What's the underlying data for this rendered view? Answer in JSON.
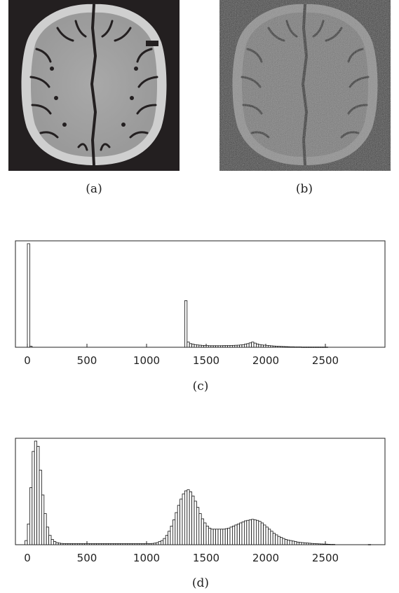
{
  "figure": {
    "panels": {
      "a": {
        "label": "(a)"
      },
      "b": {
        "label": "(b)"
      },
      "c": {
        "label": "(c)"
      },
      "d": {
        "label": "(d)"
      }
    }
  },
  "chart_data": [
    {
      "id": "c",
      "type": "bar",
      "xlim": [
        -100,
        3000
      ],
      "ylim": [
        0,
        1
      ],
      "xticks": [
        0,
        500,
        1000,
        1500,
        2000,
        2500
      ],
      "tick_labels": [
        "0",
        "500",
        "1000",
        "1500",
        "2000",
        "2500"
      ],
      "bin_width": 20,
      "bars": [
        [
          0,
          1.0
        ],
        [
          20,
          0.01
        ],
        [
          1320,
          0.45
        ],
        [
          1340,
          0.05
        ],
        [
          1360,
          0.035
        ],
        [
          1380,
          0.03
        ],
        [
          1400,
          0.025
        ],
        [
          1420,
          0.022
        ],
        [
          1440,
          0.02
        ],
        [
          1460,
          0.018
        ],
        [
          1480,
          0.017
        ],
        [
          1500,
          0.016
        ],
        [
          1520,
          0.015
        ],
        [
          1540,
          0.015
        ],
        [
          1560,
          0.015
        ],
        [
          1580,
          0.015
        ],
        [
          1600,
          0.015
        ],
        [
          1620,
          0.015
        ],
        [
          1640,
          0.016
        ],
        [
          1660,
          0.016
        ],
        [
          1680,
          0.016
        ],
        [
          1700,
          0.017
        ],
        [
          1720,
          0.018
        ],
        [
          1740,
          0.019
        ],
        [
          1760,
          0.02
        ],
        [
          1780,
          0.022
        ],
        [
          1800,
          0.025
        ],
        [
          1820,
          0.03
        ],
        [
          1840,
          0.035
        ],
        [
          1860,
          0.042
        ],
        [
          1880,
          0.05
        ],
        [
          1900,
          0.04
        ],
        [
          1920,
          0.032
        ],
        [
          1940,
          0.026
        ],
        [
          1960,
          0.022
        ],
        [
          1980,
          0.02
        ],
        [
          2000,
          0.018
        ],
        [
          2020,
          0.016
        ],
        [
          2040,
          0.014
        ],
        [
          2060,
          0.012
        ],
        [
          2080,
          0.01
        ],
        [
          2100,
          0.009
        ],
        [
          2120,
          0.008
        ],
        [
          2140,
          0.007
        ],
        [
          2160,
          0.006
        ],
        [
          2180,
          0.005
        ],
        [
          2200,
          0.004
        ],
        [
          2220,
          0.004
        ],
        [
          2240,
          0.003
        ],
        [
          2260,
          0.003
        ],
        [
          2280,
          0.003
        ],
        [
          2300,
          0.002
        ],
        [
          2320,
          0.002
        ],
        [
          2340,
          0.002
        ],
        [
          2360,
          0.002
        ],
        [
          2380,
          0.002
        ],
        [
          2400,
          0.002
        ],
        [
          2420,
          0.002
        ],
        [
          2440,
          0.002
        ],
        [
          2460,
          0.002
        ],
        [
          2480,
          0.002
        ],
        [
          2500,
          0.002
        ]
      ]
    },
    {
      "id": "d",
      "type": "bar",
      "xlim": [
        -100,
        3000
      ],
      "ylim": [
        0,
        1
      ],
      "xticks": [
        0,
        500,
        1000,
        1500,
        2000,
        2500
      ],
      "tick_labels": [
        "0",
        "500",
        "1000",
        "1500",
        "2000",
        "2500"
      ],
      "bin_width": 20,
      "bars": [
        [
          -20,
          0.04
        ],
        [
          0,
          0.2
        ],
        [
          20,
          0.55
        ],
        [
          40,
          0.9
        ],
        [
          60,
          1.0
        ],
        [
          80,
          0.95
        ],
        [
          100,
          0.72
        ],
        [
          120,
          0.48
        ],
        [
          140,
          0.3
        ],
        [
          160,
          0.17
        ],
        [
          180,
          0.09
        ],
        [
          200,
          0.05
        ],
        [
          220,
          0.03
        ],
        [
          240,
          0.02
        ],
        [
          260,
          0.015
        ],
        [
          280,
          0.012
        ],
        [
          300,
          0.01
        ],
        [
          320,
          0.01
        ],
        [
          340,
          0.01
        ],
        [
          360,
          0.01
        ],
        [
          380,
          0.01
        ],
        [
          400,
          0.01
        ],
        [
          420,
          0.01
        ],
        [
          440,
          0.01
        ],
        [
          460,
          0.01
        ],
        [
          480,
          0.01
        ],
        [
          500,
          0.01
        ],
        [
          520,
          0.01
        ],
        [
          540,
          0.01
        ],
        [
          560,
          0.01
        ],
        [
          580,
          0.01
        ],
        [
          600,
          0.01
        ],
        [
          620,
          0.01
        ],
        [
          640,
          0.01
        ],
        [
          660,
          0.01
        ],
        [
          680,
          0.01
        ],
        [
          700,
          0.01
        ],
        [
          720,
          0.01
        ],
        [
          740,
          0.01
        ],
        [
          760,
          0.01
        ],
        [
          780,
          0.01
        ],
        [
          800,
          0.01
        ],
        [
          820,
          0.01
        ],
        [
          840,
          0.01
        ],
        [
          860,
          0.01
        ],
        [
          880,
          0.01
        ],
        [
          900,
          0.01
        ],
        [
          920,
          0.01
        ],
        [
          940,
          0.01
        ],
        [
          960,
          0.01
        ],
        [
          980,
          0.01
        ],
        [
          1000,
          0.01
        ],
        [
          1020,
          0.01
        ],
        [
          1040,
          0.012
        ],
        [
          1060,
          0.015
        ],
        [
          1080,
          0.02
        ],
        [
          1100,
          0.03
        ],
        [
          1120,
          0.04
        ],
        [
          1140,
          0.06
        ],
        [
          1160,
          0.09
        ],
        [
          1180,
          0.13
        ],
        [
          1200,
          0.18
        ],
        [
          1220,
          0.24
        ],
        [
          1240,
          0.31
        ],
        [
          1260,
          0.38
        ],
        [
          1280,
          0.44
        ],
        [
          1300,
          0.49
        ],
        [
          1320,
          0.52
        ],
        [
          1340,
          0.53
        ],
        [
          1360,
          0.51
        ],
        [
          1380,
          0.47
        ],
        [
          1400,
          0.42
        ],
        [
          1420,
          0.36
        ],
        [
          1440,
          0.3
        ],
        [
          1460,
          0.25
        ],
        [
          1480,
          0.21
        ],
        [
          1500,
          0.18
        ],
        [
          1520,
          0.16
        ],
        [
          1540,
          0.15
        ],
        [
          1560,
          0.15
        ],
        [
          1580,
          0.15
        ],
        [
          1600,
          0.15
        ],
        [
          1620,
          0.15
        ],
        [
          1640,
          0.15
        ],
        [
          1660,
          0.155
        ],
        [
          1680,
          0.16
        ],
        [
          1700,
          0.17
        ],
        [
          1720,
          0.18
        ],
        [
          1740,
          0.19
        ],
        [
          1760,
          0.2
        ],
        [
          1780,
          0.21
        ],
        [
          1800,
          0.22
        ],
        [
          1820,
          0.23
        ],
        [
          1840,
          0.235
        ],
        [
          1860,
          0.24
        ],
        [
          1880,
          0.245
        ],
        [
          1900,
          0.24
        ],
        [
          1920,
          0.235
        ],
        [
          1940,
          0.225
        ],
        [
          1960,
          0.21
        ],
        [
          1980,
          0.19
        ],
        [
          2000,
          0.17
        ],
        [
          2020,
          0.15
        ],
        [
          2040,
          0.13
        ],
        [
          2060,
          0.11
        ],
        [
          2080,
          0.095
        ],
        [
          2100,
          0.08
        ],
        [
          2120,
          0.07
        ],
        [
          2140,
          0.06
        ],
        [
          2160,
          0.05
        ],
        [
          2180,
          0.045
        ],
        [
          2200,
          0.04
        ],
        [
          2220,
          0.035
        ],
        [
          2240,
          0.03
        ],
        [
          2260,
          0.025
        ],
        [
          2280,
          0.022
        ],
        [
          2300,
          0.02
        ],
        [
          2320,
          0.018
        ],
        [
          2340,
          0.016
        ],
        [
          2360,
          0.014
        ],
        [
          2380,
          0.012
        ],
        [
          2400,
          0.01
        ],
        [
          2420,
          0.009
        ],
        [
          2440,
          0.008
        ],
        [
          2460,
          0.007
        ],
        [
          2480,
          0.006
        ],
        [
          2500,
          0.005
        ],
        [
          2520,
          0.004
        ],
        [
          2540,
          0.003
        ],
        [
          2560,
          0.003
        ],
        [
          2860,
          0.002
        ]
      ]
    }
  ]
}
